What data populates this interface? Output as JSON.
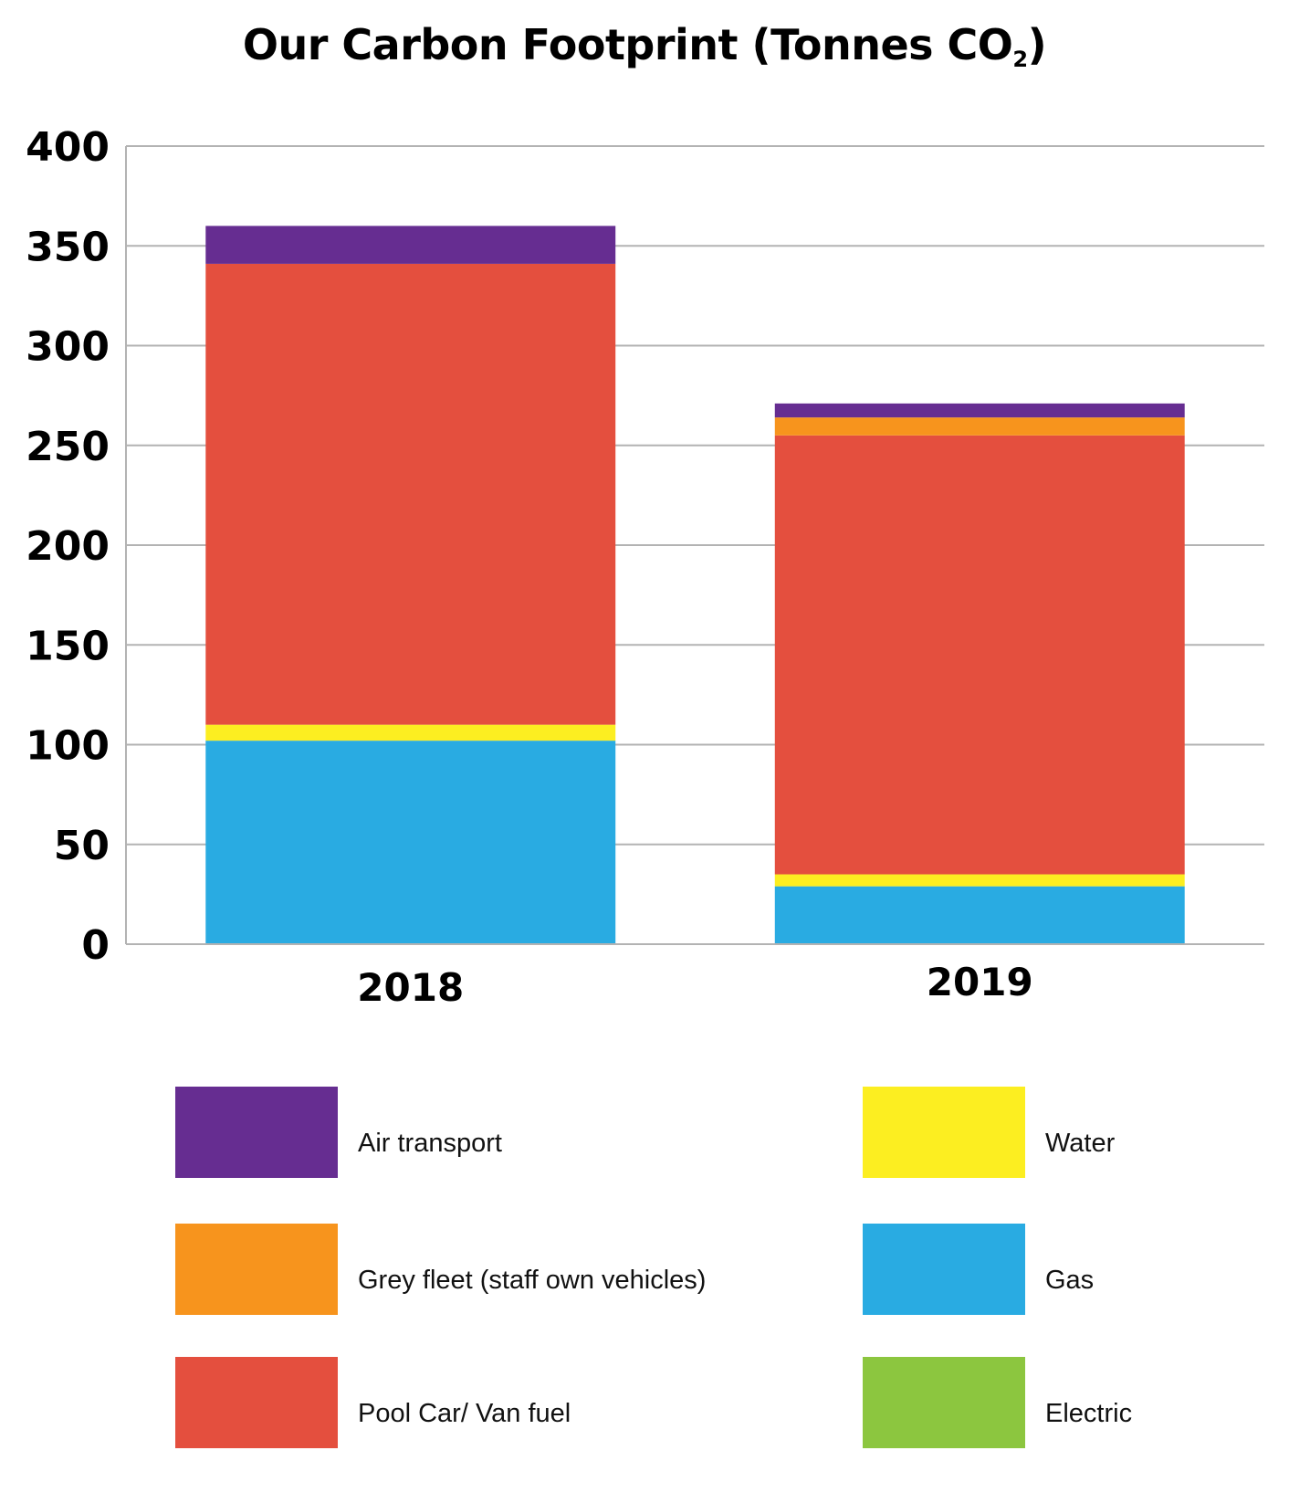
{
  "chart_data": {
    "type": "bar",
    "stacked": true,
    "title": "Our Carbon Footprint (Tonnes CO",
    "title_subscript": "2",
    "title_suffix": ")",
    "xlabel": "",
    "ylabel": "",
    "ylim": [
      0,
      400
    ],
    "yticks": [
      0,
      50,
      100,
      150,
      200,
      250,
      300,
      350,
      400
    ],
    "grid": true,
    "categories": [
      "2018",
      "2019"
    ],
    "series": [
      {
        "name": "Gas",
        "color": "#29abe2",
        "values": [
          102,
          29
        ]
      },
      {
        "name": "Water",
        "color": "#fcee21",
        "values": [
          8,
          6
        ]
      },
      {
        "name": "Pool Car/ Van fuel",
        "color": "#e44f3e",
        "values": [
          231,
          220
        ]
      },
      {
        "name": "Grey fleet (staff own vehicles)",
        "color": "#f7941d",
        "values": [
          0,
          9
        ]
      },
      {
        "name": "Air transport",
        "color": "#662d91",
        "values": [
          19,
          7
        ]
      },
      {
        "name": "Electric",
        "color": "#8cc63f",
        "values": [
          0,
          0
        ]
      }
    ],
    "legend": {
      "placement": "bottom",
      "items": [
        {
          "name": "Air transport",
          "color": "#662d91"
        },
        {
          "name": "Grey fleet (staff own vehicles)",
          "color": "#f7941d"
        },
        {
          "name": "Pool Car/ Van fuel",
          "color": "#e44f3e"
        },
        {
          "name": "Water",
          "color": "#fcee21"
        },
        {
          "name": "Gas",
          "color": "#29abe2"
        },
        {
          "name": "Electric",
          "color": "#8cc63f"
        }
      ]
    }
  }
}
